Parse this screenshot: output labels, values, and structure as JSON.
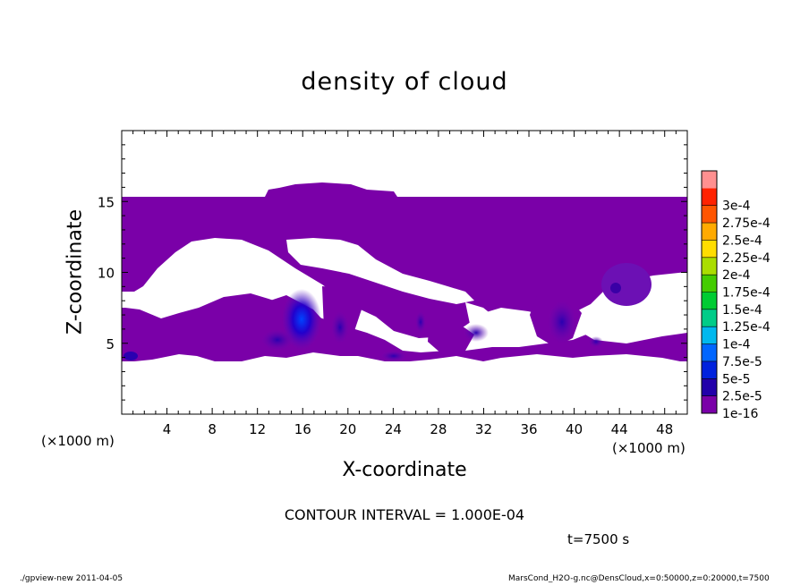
{
  "chart_data": {
    "type": "heatmap",
    "title": "density of cloud",
    "xlabel": "X-coordinate",
    "ylabel": "Z-coordinate",
    "x_unit_left": "(×1000 m)",
    "x_unit_right": "(×1000 m)",
    "xlim": [
      0,
      50
    ],
    "ylim": [
      0,
      20
    ],
    "x_ticks": [
      4,
      8,
      12,
      16,
      20,
      24,
      28,
      32,
      36,
      40,
      44,
      48
    ],
    "y_ticks": [
      5,
      10,
      15
    ],
    "contour_interval_label": "CONTOUR INTERVAL = 1.000E-04",
    "time_label": "t=7500 s",
    "legend_levels": [
      "1e-16",
      "2.5e-5",
      "5e-5",
      "7.5e-5",
      "1e-4",
      "1.25e-4",
      "1.5e-4",
      "1.75e-4",
      "2e-4",
      "2.25e-4",
      "2.5e-4",
      "2.75e-4",
      "3e-4"
    ],
    "legend_colors": [
      "#7a00a8",
      "#2200aa",
      "#0022dd",
      "#0066ff",
      "#00b8ee",
      "#00cc88",
      "#00cc33",
      "#44cc00",
      "#aadd00",
      "#ffdd00",
      "#ffaa00",
      "#ff5500",
      "#ff2200",
      "#ff9090"
    ],
    "cloud_layer": {
      "z_bottom": 4,
      "z_top": 15.3,
      "max_top": 16.3,
      "color": "#7a00a8"
    },
    "regions": [
      {
        "x": 16,
        "z": 6.8,
        "level": "5e-5"
      },
      {
        "x": 14,
        "z": 5.0,
        "level": "2.5e-5"
      },
      {
        "x": 39,
        "z": 6.5,
        "level": "2.5e-5"
      },
      {
        "x": 31,
        "z": 5.7,
        "level": "2.5e-5"
      },
      {
        "x": 44,
        "z": 9.0,
        "level": "1e-16"
      }
    ]
  },
  "footer": {
    "left": "./gpview-new   2011-04-05",
    "right": "MarsCond_H2O-g.nc@DensCloud,x=0:50000,z=0:20000,t=7500"
  }
}
